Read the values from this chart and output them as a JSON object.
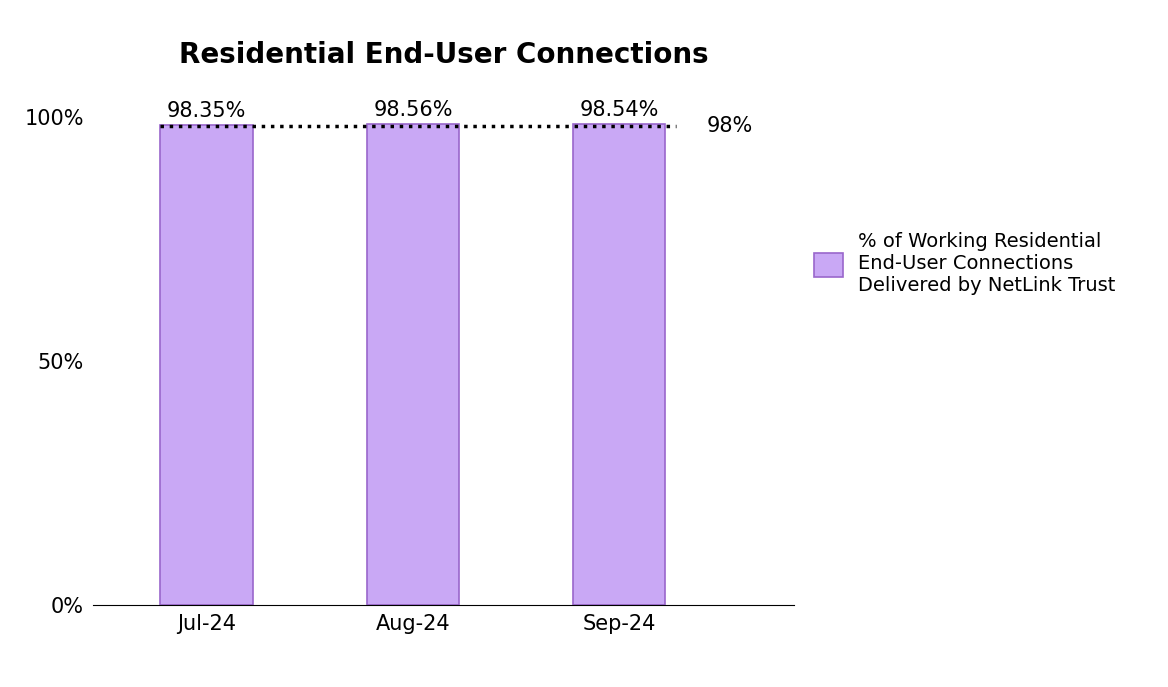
{
  "title": "Residential End-User Connections",
  "categories": [
    "Jul-24",
    "Aug-24",
    "Sep-24"
  ],
  "values": [
    98.35,
    98.56,
    98.54
  ],
  "bar_labels": [
    "98.35%",
    "98.56%",
    "98.54%"
  ],
  "bar_color": "#C9A8F5",
  "bar_edgecolor": "#9966CC",
  "ylim": [
    0,
    107
  ],
  "yticks": [
    0,
    50,
    100
  ],
  "ytick_labels": [
    "0%",
    "50%",
    "100%"
  ],
  "target_line_y": 98,
  "target_line_label": "98%",
  "legend_label": "% of Working Residential\nEnd-User Connections\nDelivered by NetLink Trust",
  "title_fontsize": 20,
  "tick_fontsize": 15,
  "bar_label_fontsize": 15,
  "legend_fontsize": 14,
  "target_label_fontsize": 15,
  "bar_width": 0.45
}
